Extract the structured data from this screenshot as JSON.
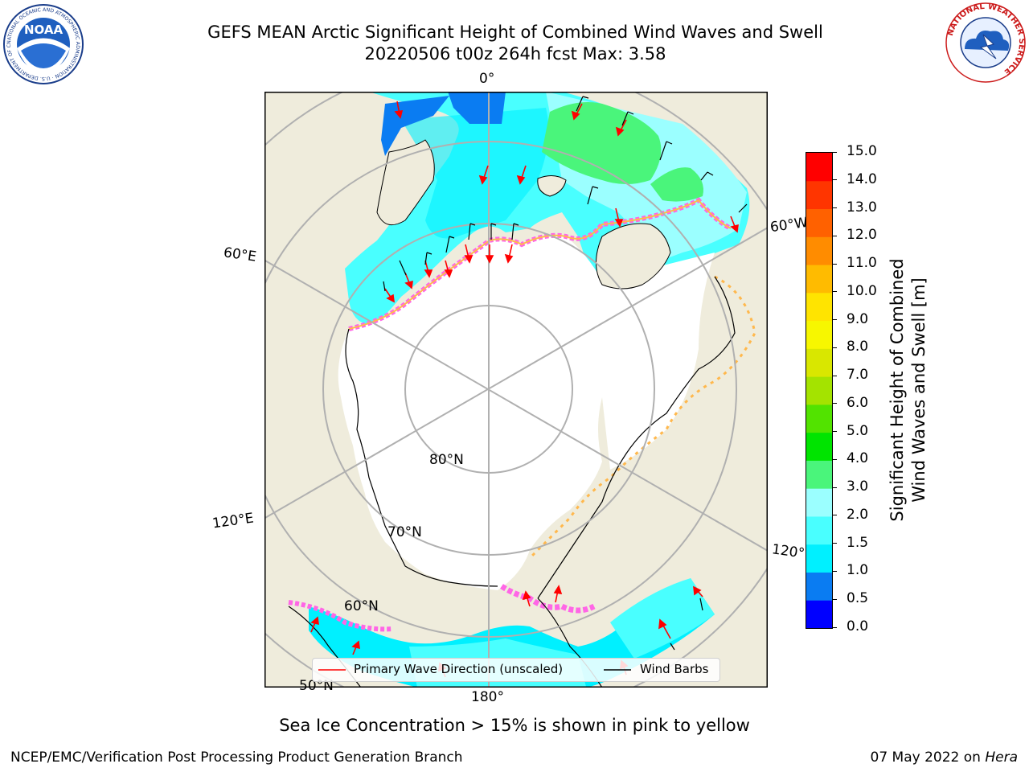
{
  "header": {
    "title_line1": "GEFS MEAN Arctic Significant Height of Combined Wind Waves and Swell",
    "title_line2": "20220506 t00z 264h fcst   Max: 3.58"
  },
  "logos": {
    "left_text": "NOAA",
    "left_ring_text": "NATIONAL OCEANIC AND ATMOSPHERIC ADMINISTRATION · U.S. DEPARTMENT OF COMMERCE",
    "right_ring_text": "NATIONAL WEATHER SERVICE"
  },
  "map": {
    "projection": "north-polar-stereographic",
    "meridian_labels": {
      "top": "0°",
      "left_upper": "60°E",
      "left_lower": "120°E",
      "right_upper": "60°W",
      "right_lower": "120°",
      "bottom": "180°"
    },
    "parallel_labels": {
      "p80": "80°N",
      "p70": "70°N",
      "p60": "60°N",
      "p50": "50°N"
    },
    "colors": {
      "land": "#efecdc",
      "ice_free_ocean": "#ffffff",
      "grid": "#b0b0b0",
      "arrow": "#ff0000",
      "barb": "#000000"
    }
  },
  "legend": {
    "wave_direction": "Primary Wave Direction (unscaled)",
    "wind_barbs": "Wind Barbs"
  },
  "colorbar": {
    "label_line1": "Significant Height of Combined",
    "label_line2": "Wind Waves and Swell [m]",
    "ticks": [
      "0.0",
      "0.5",
      "1.0",
      "1.5",
      "2.0",
      "3.0",
      "4.0",
      "5.0",
      "6.0",
      "7.0",
      "8.0",
      "9.0",
      "10.0",
      "11.0",
      "12.0",
      "13.0",
      "14.0",
      "15.0"
    ],
    "colors": [
      "#0000ff",
      "#0a7cf2",
      "#00f0ff",
      "#49ffff",
      "#9bffff",
      "#4af57b",
      "#00e400",
      "#52e300",
      "#a4e300",
      "#d9e700",
      "#f7f700",
      "#ffe400",
      "#ffbb00",
      "#ff8c00",
      "#ff6100",
      "#ff3500",
      "#ff0000"
    ]
  },
  "note": "Sea Ice Concentration > 15% is shown in pink to yellow",
  "footer": {
    "left": "NCEP/EMC/Verification Post Processing Product Generation Branch",
    "right_prefix": "07 May 2022 on ",
    "right_italic": "Hera"
  }
}
